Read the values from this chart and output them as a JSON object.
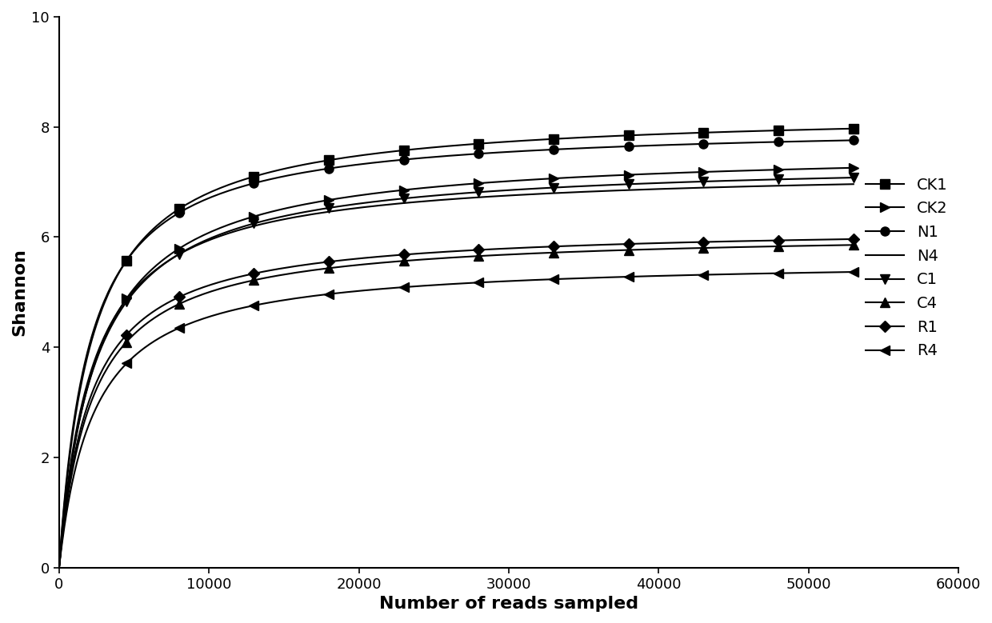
{
  "xlabel": "Number of reads sampled",
  "ylabel": "Shannon",
  "xlim": [
    0,
    60000
  ],
  "ylim": [
    0,
    10
  ],
  "xticks": [
    0,
    10000,
    20000,
    30000,
    40000,
    50000,
    60000
  ],
  "yticks": [
    0,
    2,
    4,
    6,
    8,
    10
  ],
  "series": [
    {
      "label": "CK1",
      "plateau": 8.3,
      "half_sat": 2200,
      "marker": "s",
      "markersize": 8
    },
    {
      "label": "CK2",
      "plateau": 7.6,
      "half_sat": 2500,
      "marker": ">",
      "markersize": 9
    },
    {
      "label": "N1",
      "plateau": 8.05,
      "half_sat": 2000,
      "marker": "o",
      "markersize": 8
    },
    {
      "label": "N4",
      "plateau": 7.25,
      "half_sat": 2200,
      "marker": "None",
      "markersize": 0
    },
    {
      "label": "C1",
      "plateau": 7.4,
      "half_sat": 2400,
      "marker": "v",
      "markersize": 9
    },
    {
      "label": "C4",
      "plateau": 6.1,
      "half_sat": 2200,
      "marker": "^",
      "markersize": 8
    },
    {
      "label": "R1",
      "plateau": 6.2,
      "half_sat": 2100,
      "marker": "D",
      "markersize": 7
    },
    {
      "label": "R4",
      "plateau": 5.6,
      "half_sat": 2300,
      "marker": "<",
      "markersize": 9
    }
  ],
  "color": "#000000",
  "linewidth": 1.5,
  "xlabel_fontsize": 16,
  "ylabel_fontsize": 16,
  "tick_fontsize": 13,
  "legend_fontsize": 14,
  "x_max_data": 53000
}
